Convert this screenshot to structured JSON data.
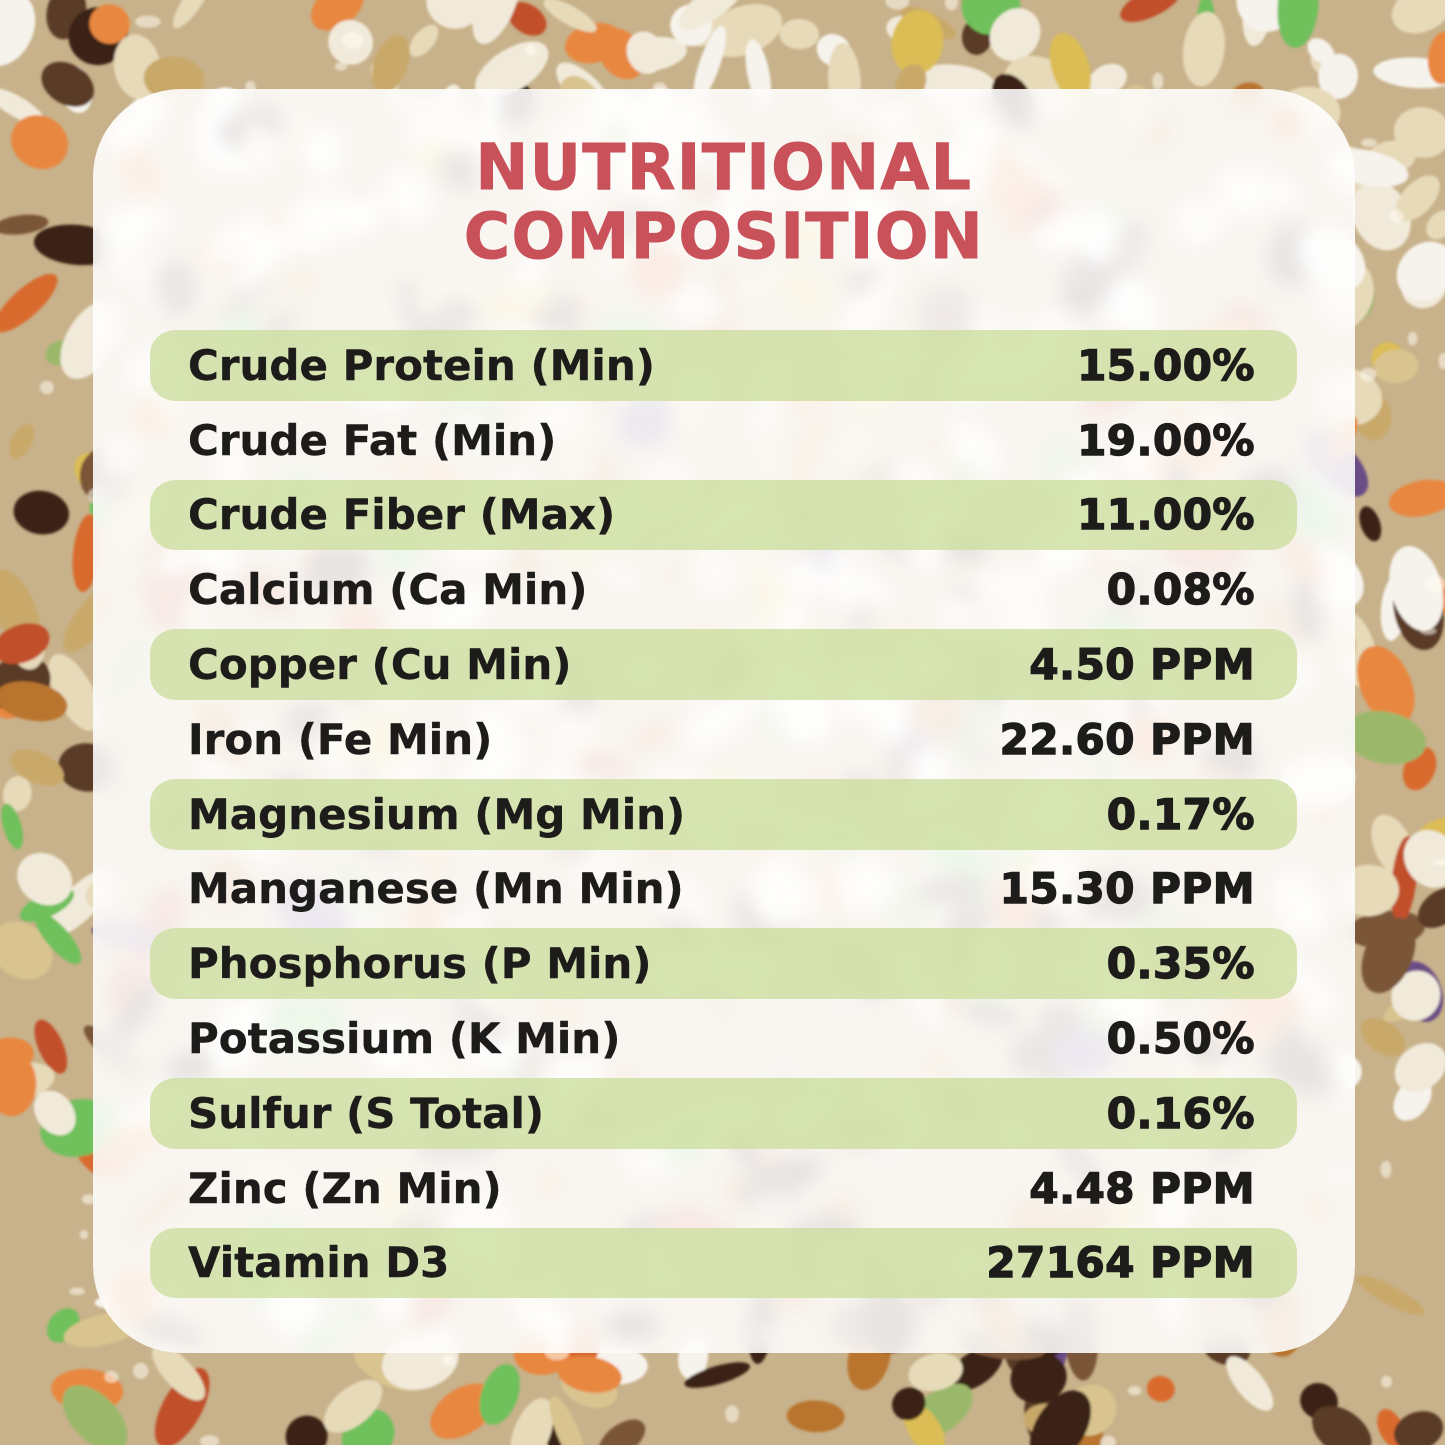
{
  "header": {
    "title_line1": "NUTRITIONAL",
    "title_line2": "COMPOSITION"
  },
  "table": {
    "rows": [
      {
        "label": "Crude Protein (Min)",
        "value": "15.00%",
        "highlight": true
      },
      {
        "label": "Crude Fat (Min)",
        "value": "19.00%",
        "highlight": false
      },
      {
        "label": "Crude Fiber (Max)",
        "value": "11.00%",
        "highlight": true
      },
      {
        "label": "Calcium (Ca Min)",
        "value": "0.08%",
        "highlight": false
      },
      {
        "label": "Copper (Cu Min)",
        "value": "4.50 PPM",
        "highlight": true
      },
      {
        "label": "Iron (Fe Min)",
        "value": "22.60 PPM",
        "highlight": false
      },
      {
        "label": "Magnesium (Mg Min)",
        "value": "0.17%",
        "highlight": true
      },
      {
        "label": "Manganese (Mn Min)",
        "value": "15.30 PPM",
        "highlight": false
      },
      {
        "label": "Phosphorus (P Min)",
        "value": "0.35%",
        "highlight": true
      },
      {
        "label": "Potassium (K Min)",
        "value": "0.50%",
        "highlight": false
      },
      {
        "label": "Sulfur (S Total)",
        "value": "0.16%",
        "highlight": true
      },
      {
        "label": "Zinc (Zn Min)",
        "value": "4.48 PPM",
        "highlight": false
      },
      {
        "label": "Vitamin D3",
        "value": "27164 PPM",
        "highlight": true
      }
    ]
  },
  "colors": {
    "title_red": "#C8515A",
    "row_green_rgba": "rgba(205,222,160,0.8)",
    "text": "#1D1C1B",
    "panel_white_rgba": "rgba(255,255,255,0.88)"
  },
  "background": {
    "type": "mixed-seed-photo",
    "base_color": "#C8B28B",
    "seed_colors": [
      "#F1EADA",
      "#E7DAB9",
      "#D9C48F",
      "#C9A96B",
      "#E8873F",
      "#D96A2E",
      "#C14F2A",
      "#6FC05B",
      "#9BB86A",
      "#5A3A25",
      "#3A2417",
      "#7A5537",
      "#F6F3EC",
      "#6B4E86",
      "#DCBD55",
      "#B9742F"
    ]
  }
}
